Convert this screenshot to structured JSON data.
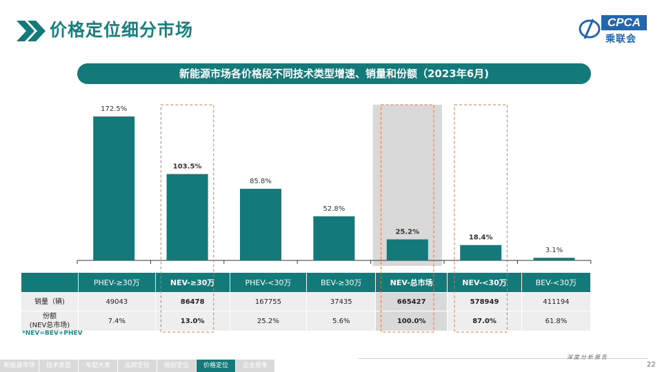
{
  "header": {
    "title": "价格定位细分市场"
  },
  "logo": {
    "brand": "CPCA",
    "cn": "乘联会"
  },
  "banner": {
    "text": "新能源市场各价格段不同技术类型增速、销量和份额（2023年6月)"
  },
  "colors": {
    "accent": "#137a79",
    "highlight_box": "#e8703a",
    "shade": "#d9d9d9"
  },
  "chart_data": {
    "type": "bar",
    "title": "新能源市场各价格段不同技术类型增速、销量和份额（2023年6月)",
    "categories": [
      "PHEV-≥30万",
      "NEV-≥30万",
      "PHEV-<30万",
      "BEV-≥30万",
      "NEV-总市场",
      "NEV-<30万",
      "BEV-<30万"
    ],
    "values": [
      172.5,
      103.5,
      85.8,
      52.8,
      25.2,
      18.4,
      3.1
    ],
    "value_labels": [
      "172.5%",
      "103.5%",
      "85.8%",
      "52.8%",
      "25.2%",
      "18.4%",
      "3.1%"
    ],
    "bold": [
      false,
      true,
      false,
      false,
      true,
      true,
      false
    ],
    "highlight": [
      "none",
      "box",
      "none",
      "none",
      "shade",
      "box",
      "none"
    ],
    "unit": "%",
    "ylim": [
      0,
      180
    ]
  },
  "table": {
    "rows": [
      {
        "label": "销量（辆)",
        "values": [
          "49043",
          "86478",
          "167755",
          "37435",
          "665427",
          "578949",
          "411194"
        ]
      },
      {
        "label": "份额\n(NEV总市场)",
        "values": [
          "7.4%",
          "13.0%",
          "25.2%",
          "5.6%",
          "100.0%",
          "87.0%",
          "61.8%"
        ]
      }
    ]
  },
  "footnote": "*NEV=BEV+PHEV",
  "nav": {
    "items": [
      "新能源市场",
      "技术类型",
      "车型大类",
      "品牌定位",
      "级别定位",
      "价格定位",
      "企业竞争"
    ],
    "active_index": 5
  },
  "footer": {
    "report": "深度分析报告",
    "page": "22"
  }
}
